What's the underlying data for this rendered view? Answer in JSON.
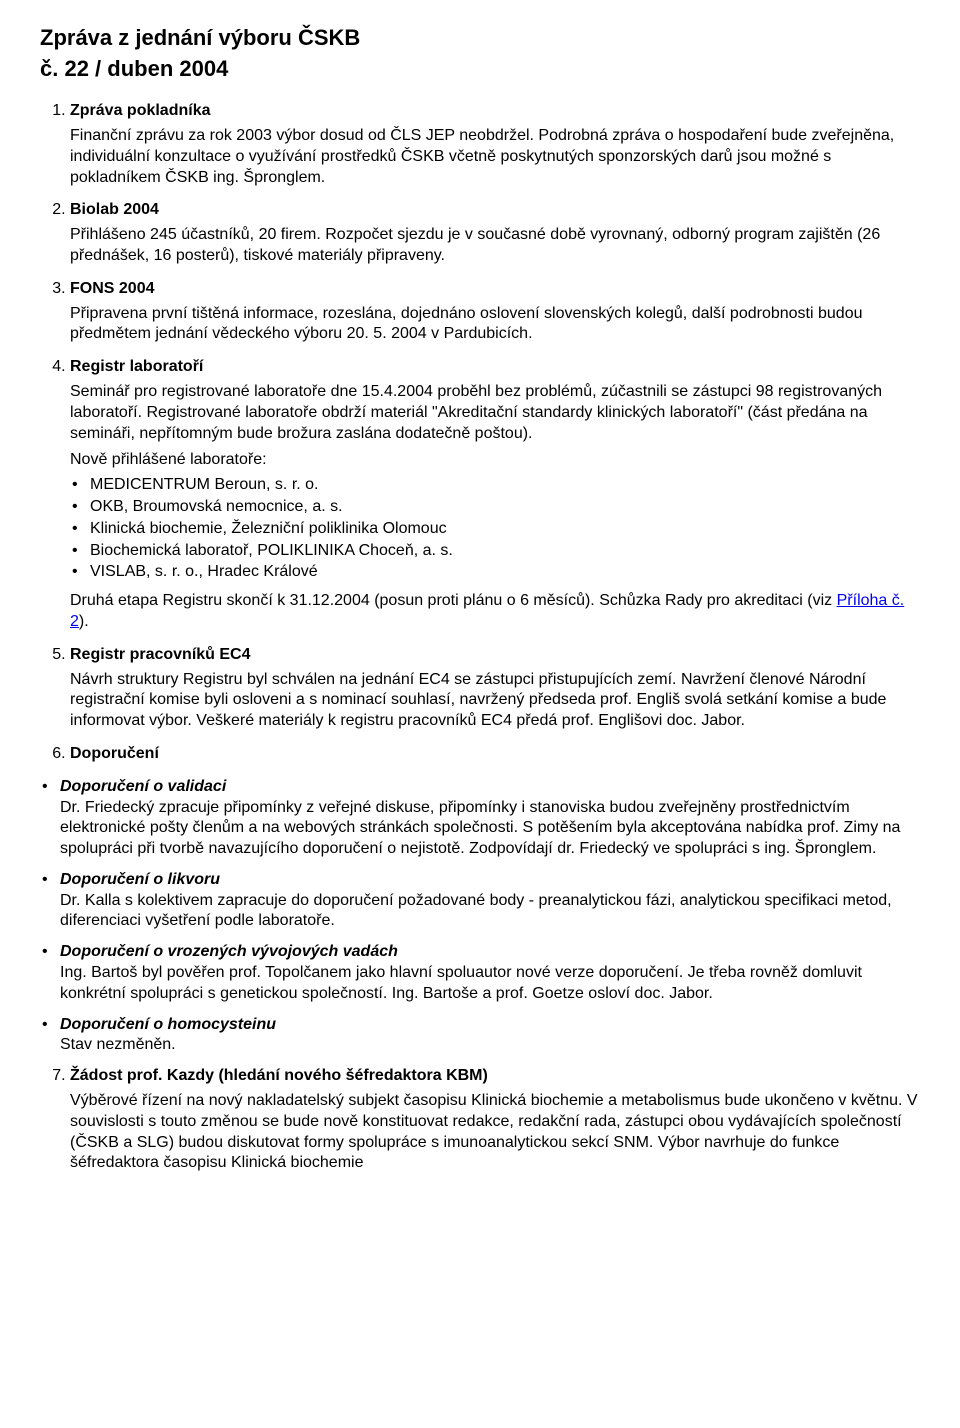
{
  "header": {
    "title": "Zpráva z jednání výboru ČSKB",
    "subtitle": "č. 22 / duben 2004"
  },
  "items": [
    {
      "num": "1.",
      "head": "Zpráva pokladníka",
      "body": "Finanční zprávu za rok 2003 výbor dosud od ČLS JEP neobdržel. Podrobná zpráva o hospodaření bude zveřejněna, individuální konzultace o využívání prostředků ČSKB včetně poskytnutých sponzorských darů jsou možné s pokladníkem ČSKB ing. Špronglem."
    },
    {
      "num": "2.",
      "head": "Biolab 2004",
      "body": "Přihlášeno 245 účastníků, 20 firem. Rozpočet sjezdu je v současné době vyrovnaný, odborný program zajištěn (26 přednášek, 16 posterů), tiskové materiály připraveny."
    },
    {
      "num": "3.",
      "head": "FONS 2004",
      "body": "Připravena první tištěná informace, rozeslána, dojednáno oslovení slovenských kolegů, další podrobnosti budou předmětem jednání vědeckého výboru 20. 5. 2004 v Pardubicích."
    },
    {
      "num": "4.",
      "head": "Registr laboratoří",
      "body": "Seminář pro registrované laboratoře dne 15.4.2004 proběhl bez problémů, zúčastnili se zástupci 98 registrovaných laboratoří. Registrované laboratoře obdrží materiál \"Akreditační standardy klinických laboratoří\" (část předána na semináři, nepřítomným bude brožura zaslána dodatečně poštou).",
      "extra_line": "Nově přihlášené laboratoře:",
      "bullets": [
        "MEDICENTRUM Beroun, s. r. o.",
        "OKB, Broumovská nemocnice, a. s.",
        "Klinická biochemie, Železniční poliklinika Olomouc",
        "Biochemická laboratoř, POLIKLINIKA Choceň, a. s.",
        "VISLAB, s. r. o., Hradec Králové"
      ],
      "closing_pre": "Druhá etapa Registru skončí k 31.12.2004 (posun proti plánu o 6 měsíců). Schůzka Rady pro akreditaci (viz ",
      "closing_link": "Příloha č. 2",
      "closing_post": ")."
    },
    {
      "num": "5.",
      "head": "Registr pracovníků EC4",
      "body": "Návrh struktury Registru byl schválen na jednání EC4 se zástupci přistupujících zemí. Navržení členové Národní registrační komise byli osloveni a s nominací souhlasí, navržený předseda prof. Engliš svolá setkání komise a bude informovat výbor. Veškeré materiály k registru pracovníků EC4 předá prof. Englišovi doc. Jabor."
    },
    {
      "num": "6.",
      "head": "Doporučení"
    }
  ],
  "doporuceni": [
    {
      "subhead": "Doporučení o validaci",
      "body": "Dr. Friedecký zpracuje připomínky z veřejné diskuse, připomínky i stanoviska budou zveřejněny prostřednictvím elektronické pošty členům a na webových stránkách společnosti. S potěšením byla akceptována nabídka prof. Zimy na spolupráci při tvorbě navazujícího doporučení o nejistotě. Zodpovídají dr. Friedecký ve spolupráci s ing. Špronglem."
    },
    {
      "subhead": "Doporučení o likvoru",
      "body": "Dr. Kalla s kolektivem zapracuje do doporučení požadované body - preanalytickou fázi, analytickou specifikaci metod, diferenciaci vyšetření podle laboratoře."
    },
    {
      "subhead": "Doporučení o vrozených vývojových vadách",
      "body": "Ing. Bartoš byl pověřen prof. Topolčanem jako hlavní spoluautor nové verze doporučení. Je třeba rovněž domluvit konkrétní spolupráci s genetickou společností. Ing. Bartoše a prof. Goetze osloví doc. Jabor."
    },
    {
      "subhead": "Doporučení o homocysteinu",
      "body": "Stav nezměněn."
    }
  ],
  "item7": {
    "num": "7.",
    "head": "Žádost prof. Kazdy (hledání nového šéfredaktora KBM)",
    "body": "Výběrové řízení na nový nakladatelský subjekt časopisu Klinická biochemie a metabolismus bude ukončeno v květnu. V souvislosti s touto změnou se bude nově konstituovat redakce, redakční rada, zástupci obou vydávajících společností (ČSKB a SLG) budou diskutovat formy spolupráce s imunoanalytickou sekcí SNM. Výbor navrhuje do funkce šéfredaktora časopisu Klinická biochemie"
  }
}
